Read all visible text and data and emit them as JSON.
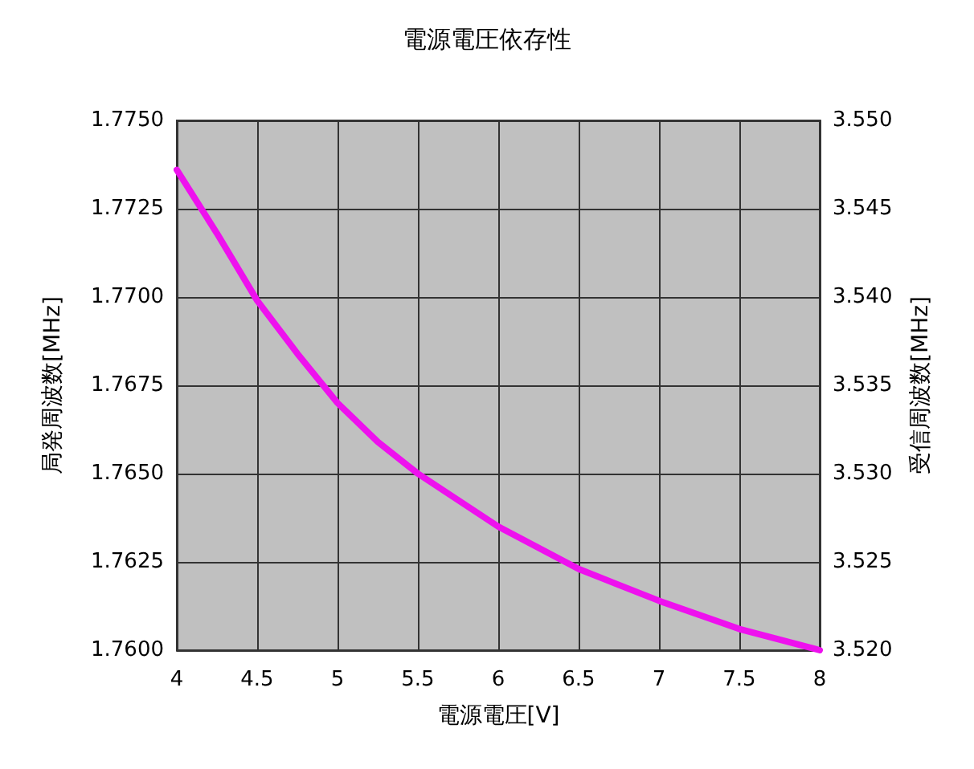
{
  "chart_data": {
    "type": "line",
    "title": "電源電圧依存性",
    "xlabel": "電源電圧[V]",
    "ylabel": "局発周波数[MHz]",
    "y2label": "受信周波数[MHz]",
    "x": [
      4,
      4.25,
      4.5,
      4.75,
      5,
      5.25,
      5.5,
      6,
      6.5,
      7,
      7.5,
      8
    ],
    "series": [
      {
        "color": "#ee11ee",
        "values": [
          1.7736,
          1.7718,
          1.7699,
          1.7684,
          1.767,
          1.7659,
          1.765,
          1.7635,
          1.7623,
          1.7614,
          1.7606,
          1.76
        ]
      }
    ],
    "xlim": [
      4,
      8
    ],
    "xticks": [
      4,
      4.5,
      5,
      5.5,
      6,
      6.5,
      7,
      7.5,
      8
    ],
    "ylim": [
      1.76,
      1.775
    ],
    "yticks": [
      {
        "value": 1.76,
        "label": "1.7600"
      },
      {
        "value": 1.7625,
        "label": "1.7625"
      },
      {
        "value": 1.765,
        "label": "1.7650"
      },
      {
        "value": 1.7675,
        "label": "1.7675"
      },
      {
        "value": 1.77,
        "label": "1.7700"
      },
      {
        "value": 1.7725,
        "label": "1.7725"
      },
      {
        "value": 1.775,
        "label": "1.7750"
      }
    ],
    "y2lim": [
      3.52,
      3.55
    ],
    "y2ticks": [
      {
        "value": 3.52,
        "label": "3.520"
      },
      {
        "value": 3.525,
        "label": "3.525"
      },
      {
        "value": 3.53,
        "label": "3.530"
      },
      {
        "value": 3.535,
        "label": "3.535"
      },
      {
        "value": 3.54,
        "label": "3.540"
      },
      {
        "value": 3.545,
        "label": "3.545"
      },
      {
        "value": 3.55,
        "label": "3.550"
      }
    ],
    "grid": true,
    "marker": "none",
    "line_style": "solid"
  }
}
